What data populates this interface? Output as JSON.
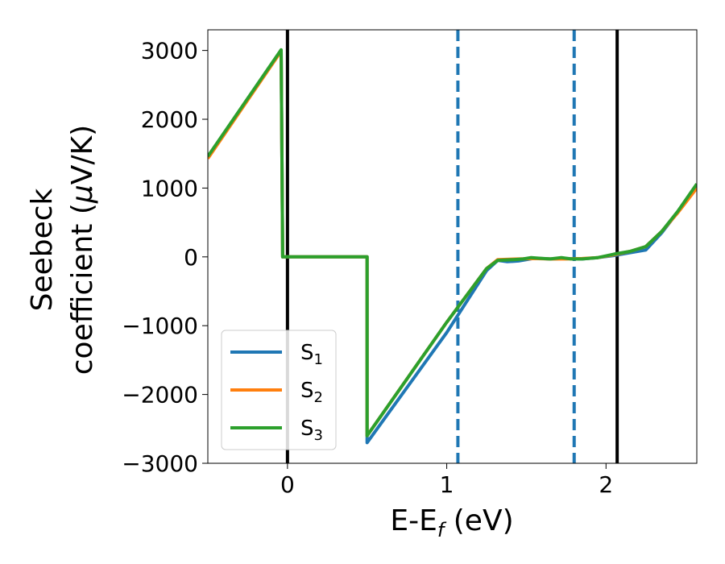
{
  "chart_data": {
    "type": "line",
    "xlabel_main": "E-E",
    "xlabel_sub": "f",
    "xlabel_unit": " (eV)",
    "ylabel_line1": "Seebeck",
    "ylabel_line2_prefix": "coefficient  (",
    "ylabel_line2_mu": "μ",
    "ylabel_line2_suffix": "V/K)",
    "xlim": [
      -0.5,
      2.57
    ],
    "ylim": [
      -3000,
      3300
    ],
    "xticks": [
      0,
      1,
      2
    ],
    "yticks": [
      -3000,
      -2000,
      -1000,
      0,
      1000,
      2000,
      3000
    ],
    "xtick_labels": [
      "0",
      "1",
      "2"
    ],
    "ytick_labels": [
      "−3000",
      "−2000",
      "−1000",
      "0",
      "1000",
      "2000",
      "3000"
    ],
    "vertical_lines": [
      {
        "x": 0.0,
        "style": "solid",
        "color": "#000000"
      },
      {
        "x": 2.07,
        "style": "solid",
        "color": "#000000"
      },
      {
        "x": 1.07,
        "style": "dashed",
        "color": "#1f77b4"
      },
      {
        "x": 1.8,
        "style": "dashed",
        "color": "#1f77b4"
      }
    ],
    "legend_position": "lower-left",
    "series": [
      {
        "name": "S",
        "sub": "1",
        "color": "#1f77b4",
        "points": [
          [
            -0.5,
            1450
          ],
          [
            -0.04,
            3000
          ],
          [
            -0.03,
            0
          ],
          [
            0.5,
            0
          ],
          [
            0.5,
            -2700
          ],
          [
            1.0,
            -1100
          ],
          [
            1.25,
            -200
          ],
          [
            1.32,
            -50
          ],
          [
            1.38,
            -70
          ],
          [
            1.45,
            -60
          ],
          [
            1.55,
            -20
          ],
          [
            1.65,
            -30
          ],
          [
            1.75,
            -25
          ],
          [
            1.85,
            -30
          ],
          [
            1.95,
            -10
          ],
          [
            2.05,
            20
          ],
          [
            2.15,
            60
          ],
          [
            2.25,
            100
          ],
          [
            2.35,
            350
          ],
          [
            2.45,
            650
          ],
          [
            2.57,
            1050
          ]
        ]
      },
      {
        "name": "S",
        "sub": "2",
        "color": "#ff7f0e",
        "points": [
          [
            -0.5,
            1430
          ],
          [
            -0.04,
            2990
          ],
          [
            -0.03,
            0
          ],
          [
            0.5,
            0
          ],
          [
            0.5,
            -2600
          ],
          [
            1.0,
            -950
          ],
          [
            1.25,
            -170
          ],
          [
            1.32,
            -40
          ],
          [
            1.45,
            -30
          ],
          [
            1.55,
            -25
          ],
          [
            1.65,
            -30
          ],
          [
            1.75,
            -30
          ],
          [
            1.85,
            -25
          ],
          [
            1.95,
            -10
          ],
          [
            2.05,
            30
          ],
          [
            2.15,
            80
          ],
          [
            2.25,
            150
          ],
          [
            2.35,
            370
          ],
          [
            2.45,
            640
          ],
          [
            2.57,
            1000
          ]
        ]
      },
      {
        "name": "S",
        "sub": "3",
        "color": "#2ca02c",
        "points": [
          [
            -0.5,
            1460
          ],
          [
            -0.04,
            3010
          ],
          [
            -0.03,
            0
          ],
          [
            0.5,
            0
          ],
          [
            0.5,
            -2600
          ],
          [
            1.0,
            -950
          ],
          [
            1.25,
            -170
          ],
          [
            1.32,
            -50
          ],
          [
            1.42,
            -40
          ],
          [
            1.48,
            -30
          ],
          [
            1.53,
            -10
          ],
          [
            1.58,
            -20
          ],
          [
            1.65,
            -30
          ],
          [
            1.72,
            -10
          ],
          [
            1.78,
            -30
          ],
          [
            1.85,
            -30
          ],
          [
            1.95,
            -10
          ],
          [
            2.05,
            40
          ],
          [
            2.15,
            80
          ],
          [
            2.25,
            150
          ],
          [
            2.35,
            370
          ],
          [
            2.45,
            660
          ],
          [
            2.57,
            1060
          ]
        ]
      }
    ]
  }
}
